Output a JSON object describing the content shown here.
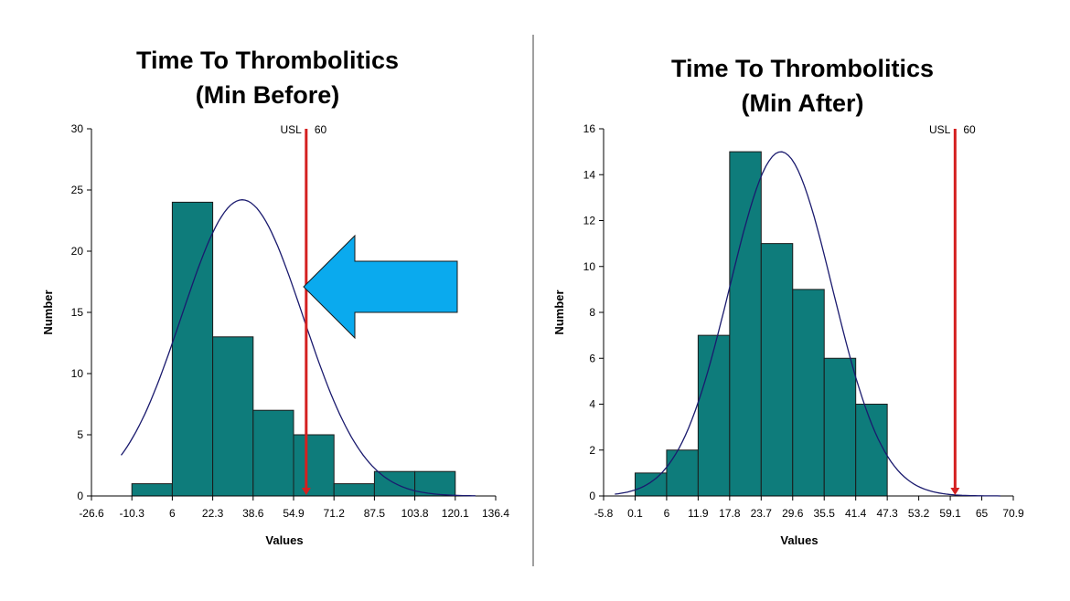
{
  "chart_data": [
    {
      "type": "bar",
      "title_line1": "Time To Thrombolitics",
      "title_line2": "(Min Before)",
      "xlabel": "Values",
      "ylabel": "Number",
      "x_ticks": [
        "-26.6",
        "-10.3",
        "6",
        "22.3",
        "38.6",
        "54.9",
        "71.2",
        "87.5",
        "103.8",
        "120.1",
        "136.4"
      ],
      "x_tick_values": [
        -26.6,
        -10.3,
        6,
        22.3,
        38.6,
        54.9,
        71.2,
        87.5,
        103.8,
        120.1,
        136.4
      ],
      "y_ticks": [
        "0",
        "5",
        "10",
        "15",
        "20",
        "25",
        "30"
      ],
      "y_tick_values": [
        0,
        5,
        10,
        15,
        20,
        25,
        30
      ],
      "xlim": [
        -26.6,
        136.4
      ],
      "ylim": [
        0,
        30
      ],
      "bins": [
        {
          "start": -10.3,
          "end": 6,
          "value": 1
        },
        {
          "start": 6,
          "end": 22.3,
          "value": 24
        },
        {
          "start": 22.3,
          "end": 38.6,
          "value": 13
        },
        {
          "start": 38.6,
          "end": 54.9,
          "value": 7
        },
        {
          "start": 54.9,
          "end": 71.2,
          "value": 5
        },
        {
          "start": 71.2,
          "end": 87.5,
          "value": 1
        },
        {
          "start": 87.5,
          "end": 103.8,
          "value": 2
        },
        {
          "start": 103.8,
          "end": 120.1,
          "value": 2
        }
      ],
      "fit_curve": {
        "mean": 34.2,
        "sd": 24.5,
        "peak": 24.2,
        "x_range": [
          -14.6,
          128.2
        ]
      },
      "usl": {
        "label": "USL",
        "value_text": "60",
        "value": 60
      },
      "annotation": "blue arrow pointing left at the USL line",
      "bar_color": "#0e7c7b",
      "curve_color": "#1a1a6e",
      "usl_color": "#d42020",
      "arrow_color": "#0aaaee",
      "grid": false
    },
    {
      "type": "bar",
      "title_line1": "Time To Thrombolitics",
      "title_line2": "(Min After)",
      "xlabel": "Values",
      "ylabel": "Number",
      "x_ticks": [
        "-5.8",
        "0.1",
        "6",
        "11.9",
        "17.8",
        "23.7",
        "29.6",
        "35.5",
        "41.4",
        "47.3",
        "53.2",
        "59.1",
        "65",
        "70.9"
      ],
      "x_tick_values": [
        -5.8,
        0.1,
        6,
        11.9,
        17.8,
        23.7,
        29.6,
        35.5,
        41.4,
        47.3,
        53.2,
        59.1,
        65,
        70.9
      ],
      "y_ticks": [
        "0",
        "2",
        "4",
        "6",
        "8",
        "10",
        "12",
        "14",
        "16"
      ],
      "y_tick_values": [
        0,
        2,
        4,
        6,
        8,
        10,
        12,
        14,
        16
      ],
      "xlim": [
        -5.8,
        70.9
      ],
      "ylim": [
        0,
        16
      ],
      "bins": [
        {
          "start": 0.1,
          "end": 6,
          "value": 1
        },
        {
          "start": 6,
          "end": 11.9,
          "value": 2
        },
        {
          "start": 11.9,
          "end": 17.8,
          "value": 7
        },
        {
          "start": 17.8,
          "end": 23.7,
          "value": 15
        },
        {
          "start": 23.7,
          "end": 29.6,
          "value": 11
        },
        {
          "start": 29.6,
          "end": 35.5,
          "value": 9
        },
        {
          "start": 35.5,
          "end": 41.4,
          "value": 6
        },
        {
          "start": 41.4,
          "end": 47.3,
          "value": 4
        }
      ],
      "fit_curve": {
        "mean": 27.4,
        "sd": 9.6,
        "peak": 15.0,
        "x_range": [
          -3.7,
          68.5
        ]
      },
      "usl": {
        "label": "USL",
        "value_text": "60",
        "value": 60
      },
      "bar_color": "#0e7c7b",
      "curve_color": "#1a1a6e",
      "usl_color": "#d42020",
      "grid": false
    }
  ]
}
